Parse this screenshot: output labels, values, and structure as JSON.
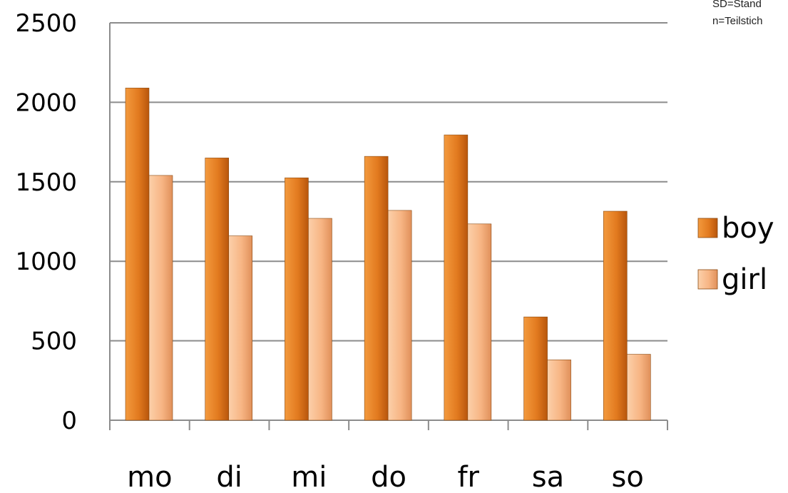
{
  "notes": [
    "SD=Stand",
    "n=Teilstich"
  ],
  "chart_data": {
    "type": "bar",
    "categories": [
      "mo",
      "di",
      "mi",
      "do",
      "fr",
      "sa",
      "so"
    ],
    "series": [
      {
        "name": "boy",
        "values": [
          2090,
          1650,
          1525,
          1660,
          1795,
          650,
          1315
        ],
        "color": "#E27A1F"
      },
      {
        "name": "girl",
        "values": [
          1540,
          1160,
          1270,
          1320,
          1235,
          380,
          415
        ],
        "color": "#F7B584"
      }
    ],
    "ylim": [
      0,
      2500
    ],
    "yticks": [
      0,
      500,
      1000,
      1500,
      2000,
      2500
    ],
    "grid": true,
    "legend": "right"
  }
}
